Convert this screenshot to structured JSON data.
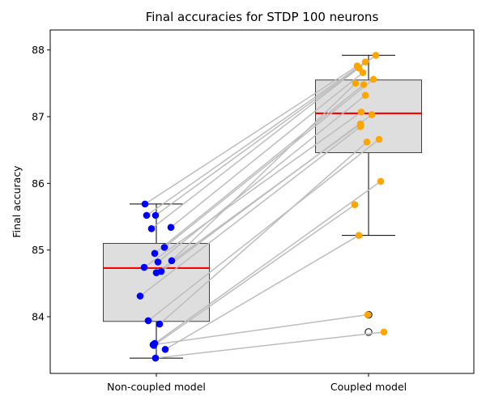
{
  "chart_data": {
    "type": "box",
    "title": "Final accuracies for STDP 100 neurons",
    "xlabel": "",
    "ylabel": "Final accuracy",
    "ylim": [
      83.15,
      88.3
    ],
    "yticks": [
      84,
      85,
      86,
      87,
      88
    ],
    "categories": [
      "Non-coupled model",
      "Coupled model"
    ],
    "grid": false,
    "colors": {
      "non_coupled_points": "#0000ff",
      "coupled_points": "#ffa500",
      "median": "#ff0000",
      "box_fill": "#dedede",
      "box_edge": "#404040",
      "pair_lines": "#bdbdbd",
      "outlier_edge": "#000000"
    },
    "boxes": [
      {
        "category": "Non-coupled model",
        "whisker_low": 83.38,
        "q1": 83.93,
        "median": 84.73,
        "q3": 85.1,
        "whisker_high": 85.69,
        "outliers": []
      },
      {
        "category": "Coupled model",
        "whisker_low": 85.22,
        "q1": 86.46,
        "median": 87.05,
        "q3": 87.55,
        "whisker_high": 87.92,
        "outliers": [
          84.03,
          83.77
        ]
      }
    ],
    "pairs": [
      {
        "non_coupled": 85.69,
        "coupled": 87.76
      },
      {
        "non_coupled": 85.52,
        "coupled": 87.82
      },
      {
        "non_coupled": 85.52,
        "coupled": 87.92
      },
      {
        "non_coupled": 85.32,
        "coupled": 87.73
      },
      {
        "non_coupled": 85.34,
        "coupled": 87.66
      },
      {
        "non_coupled": 85.04,
        "coupled": 87.56
      },
      {
        "non_coupled": 84.95,
        "coupled": 87.48
      },
      {
        "non_coupled": 84.84,
        "coupled": 87.5
      },
      {
        "non_coupled": 84.82,
        "coupled": 87.32
      },
      {
        "non_coupled": 84.74,
        "coupled": 87.07
      },
      {
        "non_coupled": 84.68,
        "coupled": 87.03
      },
      {
        "non_coupled": 84.66,
        "coupled": 86.89
      },
      {
        "non_coupled": 84.31,
        "coupled": 86.85
      },
      {
        "non_coupled": 83.94,
        "coupled": 86.66
      },
      {
        "non_coupled": 83.89,
        "coupled": 86.62
      },
      {
        "non_coupled": 83.6,
        "coupled": 86.03
      },
      {
        "non_coupled": 83.57,
        "coupled": 85.68
      },
      {
        "non_coupled": 83.51,
        "coupled": 85.22
      },
      {
        "non_coupled": 83.58,
        "coupled": 84.03
      },
      {
        "non_coupled": 83.38,
        "coupled": 83.77
      }
    ]
  }
}
